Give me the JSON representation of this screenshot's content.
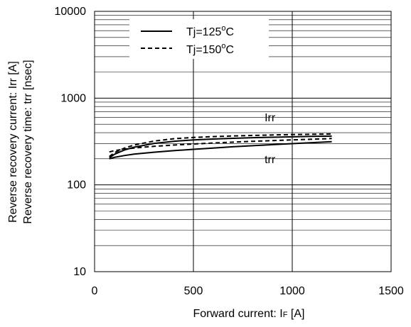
{
  "chart_data": {
    "type": "line",
    "title": "",
    "xlabel": "Forward current: IF [A]",
    "xlabel_parts": {
      "main": "Forward current: I",
      "sub": "F",
      "unit": " [A]"
    },
    "ylabel_lines": [
      "Reverse recovery current: Irr [A]",
      "Reverse recovery time: trr [nsec]"
    ],
    "x_scale": "linear",
    "y_scale": "log",
    "xlim": [
      0,
      1500
    ],
    "ylim": [
      10,
      10000
    ],
    "x_ticks": [
      0,
      500,
      1000,
      1500
    ],
    "x_tick_labels": [
      "0",
      "500",
      "1000",
      "1500"
    ],
    "y_ticks": [
      10,
      100,
      1000,
      10000
    ],
    "y_tick_labels": [
      "10",
      "100",
      "1000",
      "10000"
    ],
    "grid": true,
    "legend_position": "top-left",
    "legend": [
      {
        "label_main": "Tj=125",
        "label_sup": "o",
        "label_tail": "C",
        "style": "solid"
      },
      {
        "label_main": "Tj=150",
        "label_sup": "o",
        "label_tail": "C",
        "style": "dashed"
      }
    ],
    "annotations": [
      {
        "text": "Irr",
        "x": 860,
        "y": 540
      },
      {
        "text": "trr",
        "x": 860,
        "y": 178
      }
    ],
    "series": [
      {
        "quantity": "Irr",
        "temperature": "125°C",
        "style": "solid",
        "x": [
          75,
          100,
          150,
          200,
          300,
          400,
          500,
          600,
          700,
          800,
          900,
          1000,
          1100,
          1200
        ],
        "y": [
          205,
          225,
          252,
          272,
          300,
          318,
          330,
          338,
          344,
          350,
          354,
          358,
          362,
          365
        ]
      },
      {
        "quantity": "Irr",
        "temperature": "150°C",
        "style": "dashed",
        "x": [
          75,
          100,
          150,
          200,
          300,
          400,
          500,
          600,
          700,
          800,
          900,
          1000,
          1100,
          1200
        ],
        "y": [
          212,
          235,
          265,
          288,
          320,
          340,
          352,
          360,
          366,
          372,
          376,
          380,
          383,
          386
        ]
      },
      {
        "quantity": "trr",
        "temperature": "125°C",
        "style": "solid",
        "x": [
          75,
          100,
          150,
          200,
          300,
          400,
          500,
          600,
          700,
          800,
          900,
          1000,
          1100,
          1200
        ],
        "y": [
          200,
          208,
          218,
          226,
          238,
          248,
          257,
          266,
          275,
          283,
          291,
          299,
          307,
          315
        ]
      },
      {
        "quantity": "trr",
        "temperature": "150°C",
        "style": "dashed",
        "x": [
          75,
          100,
          150,
          200,
          300,
          400,
          500,
          600,
          700,
          800,
          900,
          1000,
          1100,
          1200
        ],
        "y": [
          240,
          248,
          258,
          266,
          278,
          288,
          296,
          304,
          311,
          318,
          324,
          330,
          336,
          342
        ]
      }
    ]
  }
}
